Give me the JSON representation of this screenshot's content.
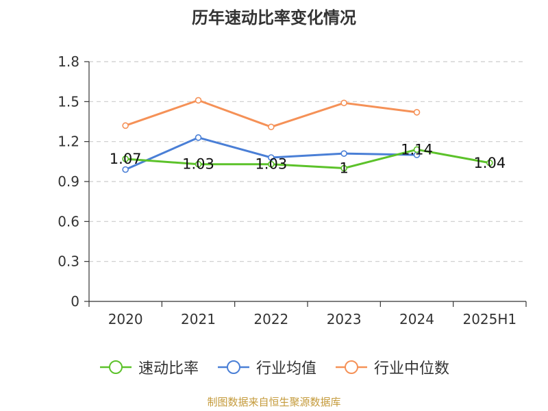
{
  "title": "历年速动比率变化情况",
  "source_note": "制图数据来自恒生聚源数据库",
  "chart_data": {
    "type": "line",
    "title": "历年速动比率变化情况",
    "categories": [
      "2020",
      "2021",
      "2022",
      "2023",
      "2024",
      "2025H1"
    ],
    "ylim": [
      0,
      1.8
    ],
    "yticks": [
      "0",
      "0.3",
      "0.6",
      "0.9",
      "1.2",
      "1.5",
      "1.8"
    ],
    "grid": true,
    "legend_position": "bottom",
    "series": [
      {
        "name": "速动比率",
        "color": "#5cc22a",
        "values": [
          1.07,
          1.03,
          1.03,
          1.0,
          1.14,
          1.04
        ],
        "labels": [
          "1.07",
          "1.03",
          "1.03",
          "1",
          "1.14",
          "1.04"
        ]
      },
      {
        "name": "行业均值",
        "color": "#4a7fd6",
        "values": [
          0.99,
          1.23,
          1.08,
          1.11,
          1.1,
          null
        ]
      },
      {
        "name": "行业中位数",
        "color": "#f59157",
        "values": [
          1.32,
          1.51,
          1.31,
          1.49,
          1.42,
          null
        ]
      }
    ]
  }
}
